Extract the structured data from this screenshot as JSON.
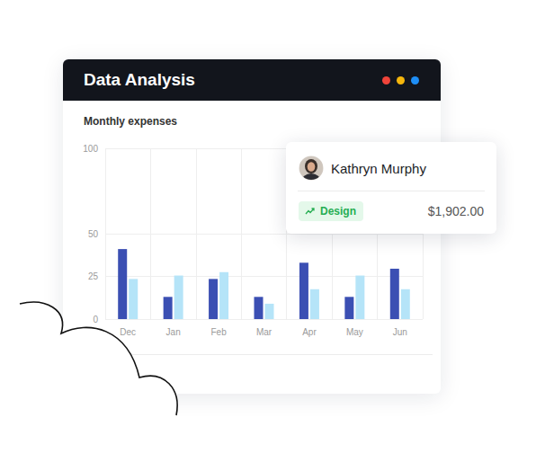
{
  "header": {
    "title": "Data Analysis"
  },
  "popup": {
    "name": "Kathryn Murphy",
    "tag": "Design",
    "amount": "$1,902.00"
  },
  "chart_data": {
    "type": "bar",
    "title": "Monthly expenses",
    "categories": [
      "Dec",
      "Jan",
      "Feb",
      "Mar",
      "Apr",
      "May",
      "Jun"
    ],
    "series": [
      {
        "color": "#3b4fb3",
        "values": [
          41,
          13,
          23.5,
          13,
          33,
          13,
          29.5
        ]
      },
      {
        "color": "#b5e4f8",
        "values": [
          23.5,
          25.5,
          27.5,
          9,
          17.5,
          25.5,
          17.5
        ]
      }
    ],
    "ylim": [
      0,
      100
    ],
    "yticks": [
      0,
      25,
      50,
      100
    ],
    "grid": true
  }
}
